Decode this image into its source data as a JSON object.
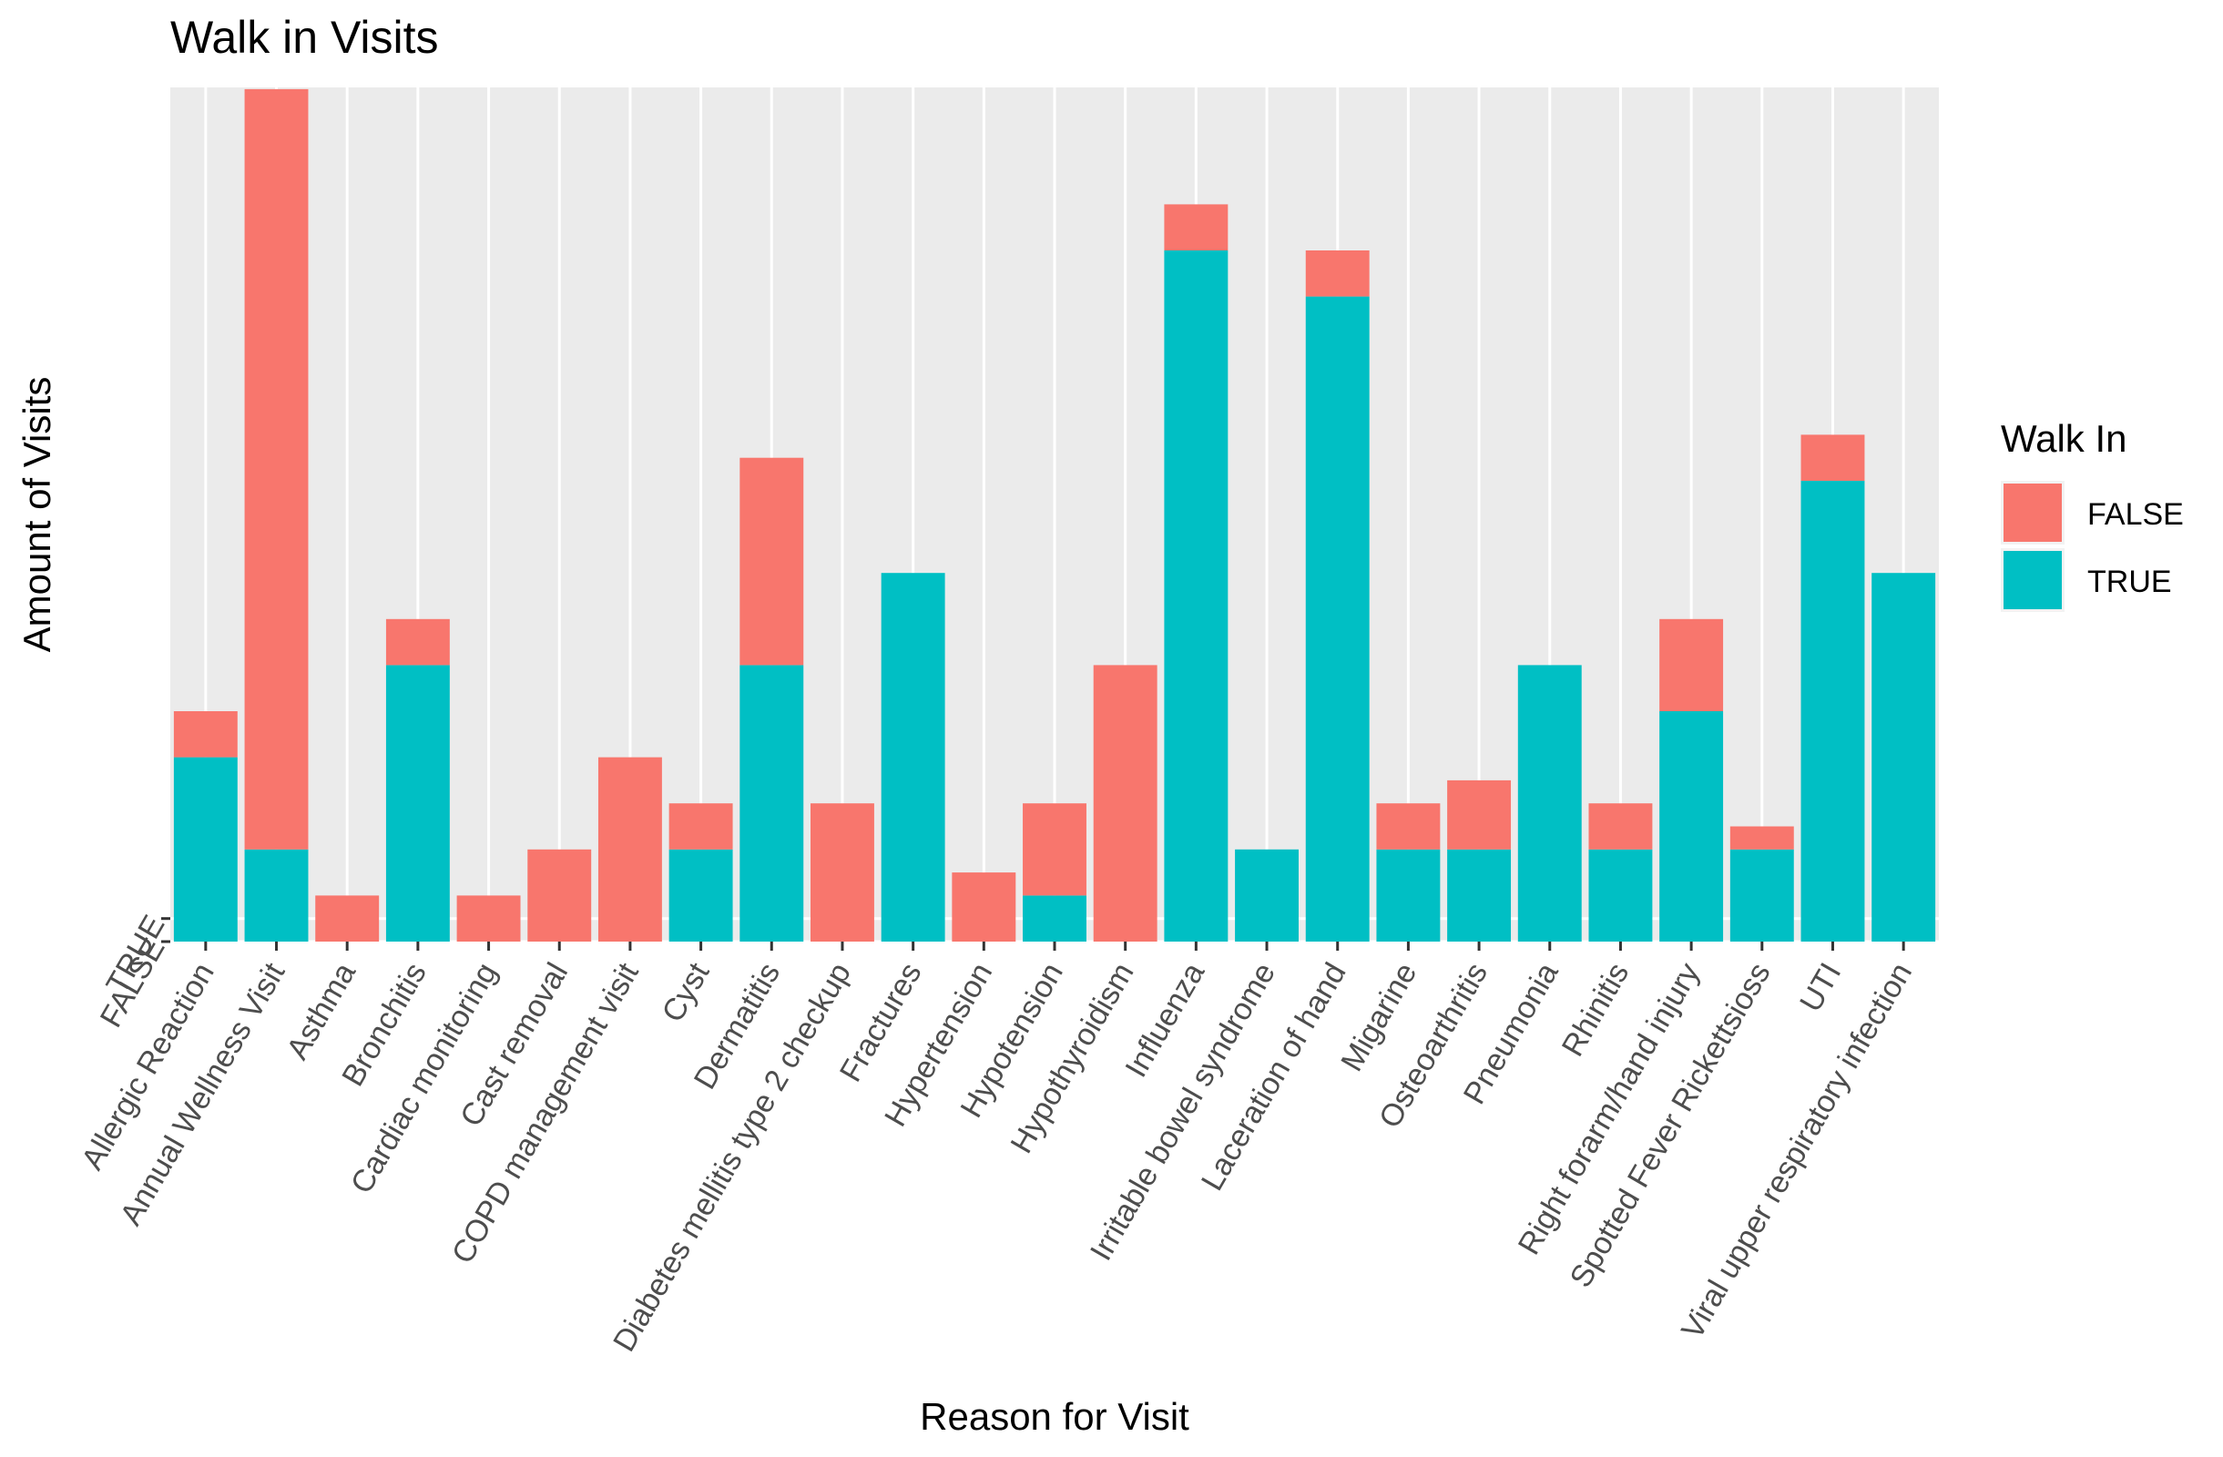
{
  "chart_data": {
    "type": "bar",
    "stacked": true,
    "title": "Walk in Visits",
    "xlabel": "Reason for Visit",
    "ylabel": "Amount of Visits",
    "y_tick_labels": [
      "FALSE",
      "TRUE"
    ],
    "legend": {
      "title": "Walk In",
      "position": "right",
      "entries": [
        {
          "label": "FALSE",
          "color": "#F8766D"
        },
        {
          "label": "TRUE",
          "color": "#00BFC4"
        }
      ]
    },
    "grid": true,
    "panel_background": "#EBEBEB",
    "categories": [
      "Allergic Reaction",
      "Annual Wellness Visit",
      "Asthma",
      "Bronchitis",
      "Cardiac monitoring",
      "Cast removal",
      "COPD management visit",
      "Cyst",
      "Dermatitis",
      "Diabetes mellitis type 2 checkup",
      "Fractures",
      "Hypertension",
      "Hypotension",
      "Hypothyroidism",
      "Influenza",
      "Irritable bowel syndrome",
      "Laceration of hand",
      "Migarine",
      "Osteoarthritis",
      "Pneumonia",
      "Rhinitis",
      "Right forarm/hand injury",
      "Spotted Fever Rickettsioss",
      "UTI",
      "Viral upper respiratory infection"
    ],
    "series": [
      {
        "name": "TRUE",
        "color": "#00BFC4",
        "values": [
          8,
          4,
          0,
          12,
          0,
          0,
          0,
          4,
          12,
          0,
          16,
          0,
          2,
          0,
          30,
          4,
          28,
          4,
          4,
          12,
          4,
          10,
          4,
          20,
          16
        ]
      },
      {
        "name": "FALSE",
        "color": "#F8766D",
        "values": [
          2,
          33,
          2,
          2,
          2,
          4,
          8,
          2,
          9,
          6,
          0,
          3,
          4,
          12,
          2,
          0,
          2,
          2,
          3,
          0,
          2,
          4,
          1,
          2,
          0
        ]
      }
    ],
    "ylim": [
      0,
      37
    ]
  }
}
